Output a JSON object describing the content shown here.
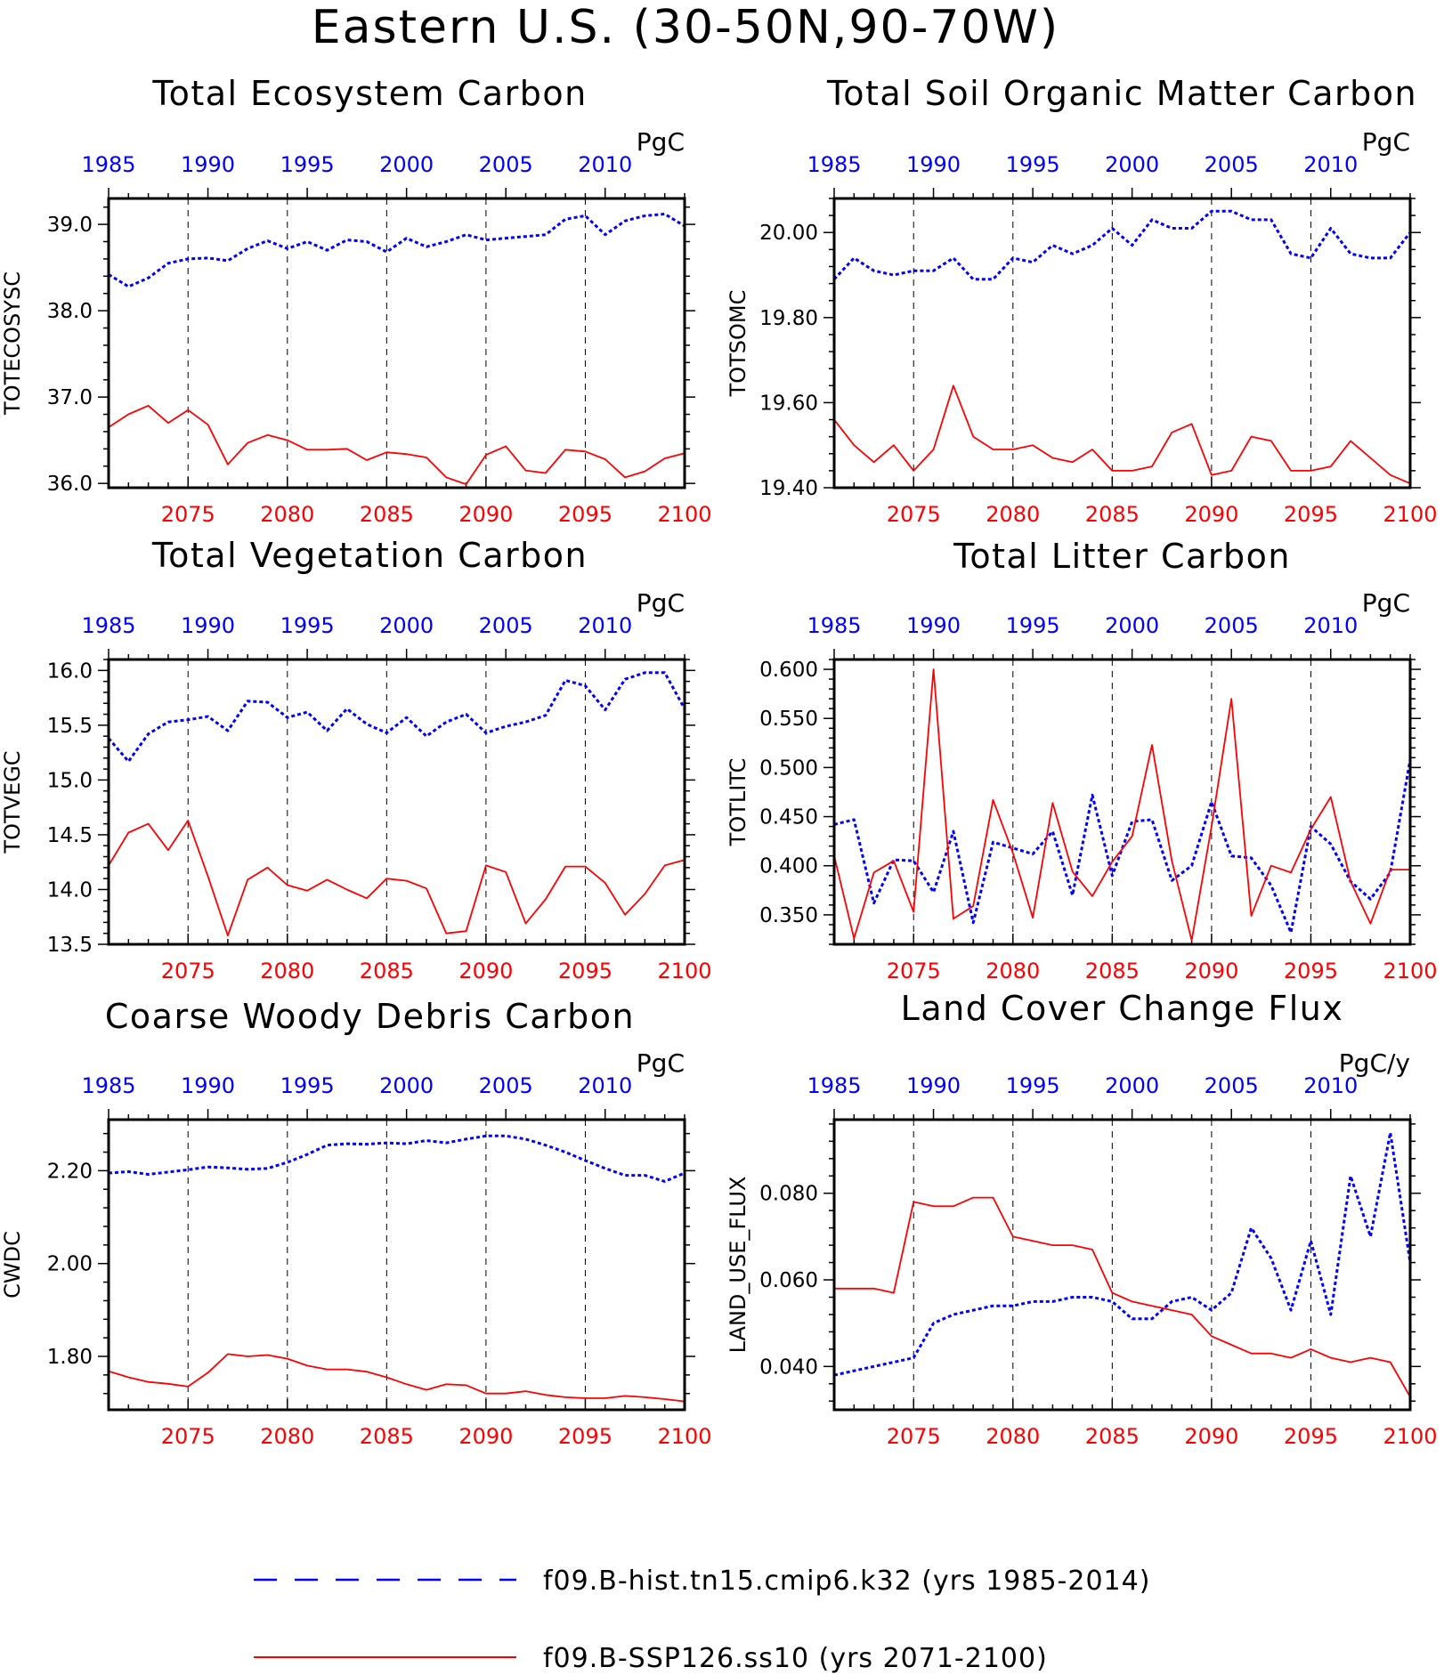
{
  "figure_title": "Eastern U.S. (30-50N,90-70W)",
  "colors": {
    "hist": "#0000ff",
    "ssp": "#ff0000",
    "axis": "#000000"
  },
  "legend": [
    {
      "label": "f09.B-hist.tn15.cmip6.k32 (yrs 1985-2014)",
      "color": "#0000ff",
      "style": "dashed"
    },
    {
      "label": "f09.B-SSP126.ss10 (yrs 2071-2100)",
      "color": "#ff0000",
      "style": "solid"
    }
  ],
  "chart_data": [
    {
      "type": "line",
      "title": "Total Ecosystem Carbon",
      "ylabel": "TOTECOSYSC",
      "unit": "PgC",
      "ylim": [
        35.95,
        39.3
      ],
      "yticks": [
        36.0,
        37.0,
        38.0,
        39.0
      ],
      "ytick_labels": [
        "36.0",
        "37.0",
        "38.0",
        "39.0"
      ],
      "x_bottom": {
        "range": [
          2071,
          2100
        ],
        "ticks": [
          2075,
          2080,
          2085,
          2090,
          2095,
          2100
        ]
      },
      "x_top": {
        "range": [
          1985,
          2014
        ],
        "ticks": [
          1985,
          1990,
          1995,
          2000,
          2005,
          2010
        ]
      },
      "series": [
        {
          "name": "f09.B-hist.tn15.cmip6.k32",
          "axis": "top",
          "x_start": 1985,
          "values": [
            38.42,
            38.28,
            38.38,
            38.55,
            38.6,
            38.61,
            38.58,
            38.72,
            38.81,
            38.72,
            38.8,
            38.7,
            38.82,
            38.8,
            38.68,
            38.84,
            38.74,
            38.8,
            38.88,
            38.82,
            38.84,
            38.86,
            38.88,
            39.06,
            39.1,
            38.88,
            39.04,
            39.1,
            39.12,
            38.98
          ]
        },
        {
          "name": "f09.B-SSP126.ss10",
          "axis": "bottom",
          "x_start": 2071,
          "values": [
            36.65,
            36.8,
            36.9,
            36.7,
            36.85,
            36.68,
            36.22,
            36.47,
            36.56,
            36.5,
            36.39,
            36.39,
            36.4,
            36.27,
            36.36,
            36.34,
            36.3,
            36.07,
            35.99,
            36.33,
            36.43,
            36.15,
            36.12,
            36.39,
            36.37,
            36.28,
            36.07,
            36.14,
            36.29,
            36.35
          ]
        }
      ]
    },
    {
      "type": "line",
      "title": "Total Soil Organic Matter Carbon",
      "ylabel": "TOTSOMC",
      "unit": "PgC",
      "ylim": [
        19.4,
        20.08
      ],
      "yticks": [
        19.4,
        19.6,
        19.8,
        20.0
      ],
      "ytick_labels": [
        "19.40",
        "19.60",
        "19.80",
        "20.00"
      ],
      "x_bottom": {
        "range": [
          2071,
          2100
        ],
        "ticks": [
          2075,
          2080,
          2085,
          2090,
          2095,
          2100
        ]
      },
      "x_top": {
        "range": [
          1985,
          2014
        ],
        "ticks": [
          1985,
          1990,
          1995,
          2000,
          2005,
          2010
        ]
      },
      "series": [
        {
          "name": "f09.B-hist.tn15.cmip6.k32",
          "axis": "top",
          "x_start": 1985,
          "values": [
            19.89,
            19.94,
            19.91,
            19.9,
            19.91,
            19.91,
            19.94,
            19.89,
            19.89,
            19.94,
            19.93,
            19.97,
            19.95,
            19.97,
            20.01,
            19.97,
            20.03,
            20.01,
            20.01,
            20.05,
            20.05,
            20.03,
            20.03,
            19.95,
            19.94,
            20.01,
            19.95,
            19.94,
            19.94,
            20.0
          ]
        },
        {
          "name": "f09.B-SSP126.ss10",
          "axis": "bottom",
          "x_start": 2071,
          "values": [
            19.56,
            19.5,
            19.46,
            19.5,
            19.44,
            19.49,
            19.64,
            19.52,
            19.49,
            19.49,
            19.5,
            19.47,
            19.46,
            19.49,
            19.44,
            19.44,
            19.45,
            19.53,
            19.55,
            19.43,
            19.44,
            19.52,
            19.51,
            19.44,
            19.44,
            19.45,
            19.51,
            19.47,
            19.43,
            19.41
          ]
        }
      ]
    },
    {
      "type": "line",
      "title": "Total Vegetation Carbon",
      "ylabel": "TOTVEGC",
      "unit": "PgC",
      "ylim": [
        13.5,
        16.1
      ],
      "yticks": [
        13.5,
        14.0,
        14.5,
        15.0,
        15.5,
        16.0
      ],
      "ytick_labels": [
        "13.5",
        "14.0",
        "14.5",
        "15.0",
        "15.5",
        "16.0"
      ],
      "x_bottom": {
        "range": [
          2071,
          2100
        ],
        "ticks": [
          2075,
          2080,
          2085,
          2090,
          2095,
          2100
        ]
      },
      "x_top": {
        "range": [
          1985,
          2014
        ],
        "ticks": [
          1985,
          1990,
          1995,
          2000,
          2005,
          2010
        ]
      },
      "series": [
        {
          "name": "f09.B-hist.tn15.cmip6.k32",
          "axis": "top",
          "x_start": 1985,
          "values": [
            15.38,
            15.17,
            15.42,
            15.53,
            15.55,
            15.58,
            15.45,
            15.72,
            15.71,
            15.57,
            15.62,
            15.45,
            15.65,
            15.51,
            15.43,
            15.57,
            15.4,
            15.53,
            15.6,
            15.43,
            15.49,
            15.53,
            15.59,
            15.91,
            15.86,
            15.64,
            15.92,
            15.98,
            15.98,
            15.65
          ]
        },
        {
          "name": "f09.B-SSP126.ss10",
          "axis": "bottom",
          "x_start": 2071,
          "values": [
            14.22,
            14.52,
            14.6,
            14.36,
            14.63,
            14.12,
            13.58,
            14.09,
            14.2,
            14.04,
            13.99,
            14.09,
            14.0,
            13.92,
            14.1,
            14.08,
            14.01,
            13.6,
            13.62,
            14.22,
            14.16,
            13.69,
            13.91,
            14.21,
            14.21,
            14.06,
            13.77,
            13.96,
            14.22,
            14.27
          ]
        }
      ]
    },
    {
      "type": "line",
      "title": "Total Litter Carbon",
      "ylabel": "TOTLITC",
      "unit": "PgC",
      "ylim": [
        0.32,
        0.61
      ],
      "yticks": [
        0.35,
        0.4,
        0.45,
        0.5,
        0.55,
        0.6
      ],
      "ytick_labels": [
        "0.350",
        "0.400",
        "0.450",
        "0.500",
        "0.550",
        "0.600"
      ],
      "x_bottom": {
        "range": [
          2071,
          2100
        ],
        "ticks": [
          2075,
          2080,
          2085,
          2090,
          2095,
          2100
        ]
      },
      "x_top": {
        "range": [
          1985,
          2014
        ],
        "ticks": [
          1985,
          1990,
          1995,
          2000,
          2005,
          2010
        ]
      },
      "series": [
        {
          "name": "f09.B-hist.tn15.cmip6.k32",
          "axis": "top",
          "x_start": 1985,
          "values": [
            0.442,
            0.447,
            0.362,
            0.406,
            0.405,
            0.373,
            0.435,
            0.342,
            0.424,
            0.418,
            0.412,
            0.435,
            0.37,
            0.472,
            0.39,
            0.445,
            0.447,
            0.385,
            0.4,
            0.465,
            0.41,
            0.408,
            0.38,
            0.332,
            0.44,
            0.422,
            0.384,
            0.366,
            0.393,
            0.508
          ]
        },
        {
          "name": "f09.B-SSP126.ss10",
          "axis": "bottom",
          "x_start": 2071,
          "values": [
            0.41,
            0.326,
            0.393,
            0.405,
            0.353,
            0.6,
            0.346,
            0.359,
            0.467,
            0.413,
            0.347,
            0.464,
            0.394,
            0.369,
            0.404,
            0.43,
            0.523,
            0.405,
            0.324,
            0.44,
            0.57,
            0.349,
            0.4,
            0.393,
            0.437,
            0.47,
            0.384,
            0.341,
            0.396,
            0.396
          ]
        }
      ]
    },
    {
      "type": "line",
      "title": "Coarse Woody Debris Carbon",
      "ylabel": "CWDC",
      "unit": "PgC",
      "ylim": [
        1.685,
        2.31
      ],
      "yticks": [
        1.8,
        2.0,
        2.2
      ],
      "ytick_labels": [
        "1.80",
        "2.00",
        "2.20"
      ],
      "x_bottom": {
        "range": [
          2071,
          2100
        ],
        "ticks": [
          2075,
          2080,
          2085,
          2090,
          2095,
          2100
        ]
      },
      "x_top": {
        "range": [
          1985,
          2014
        ],
        "ticks": [
          1985,
          1990,
          1995,
          2000,
          2005,
          2010
        ]
      },
      "series": [
        {
          "name": "f09.B-hist.tn15.cmip6.k32",
          "axis": "top",
          "x_start": 1985,
          "values": [
            2.195,
            2.198,
            2.192,
            2.197,
            2.202,
            2.208,
            2.206,
            2.203,
            2.205,
            2.218,
            2.235,
            2.255,
            2.258,
            2.257,
            2.26,
            2.258,
            2.265,
            2.26,
            2.268,
            2.275,
            2.275,
            2.268,
            2.255,
            2.24,
            2.222,
            2.205,
            2.19,
            2.19,
            2.177,
            2.195
          ]
        },
        {
          "name": "f09.B-SSP126.ss10",
          "axis": "bottom",
          "x_start": 2071,
          "values": [
            1.768,
            1.755,
            1.745,
            1.741,
            1.735,
            1.765,
            1.805,
            1.8,
            1.803,
            1.795,
            1.78,
            1.772,
            1.772,
            1.767,
            1.755,
            1.74,
            1.728,
            1.74,
            1.738,
            1.72,
            1.72,
            1.725,
            1.717,
            1.712,
            1.71,
            1.71,
            1.715,
            1.712,
            1.708,
            1.703
          ]
        }
      ]
    },
    {
      "type": "line",
      "title": "Land Cover Change Flux",
      "ylabel": "LAND_USE_FLUX",
      "unit": "PgC/y",
      "ylim": [
        0.03,
        0.097
      ],
      "yticks": [
        0.04,
        0.06,
        0.08
      ],
      "ytick_labels": [
        "0.040",
        "0.060",
        "0.080"
      ],
      "x_bottom": {
        "range": [
          2071,
          2100
        ],
        "ticks": [
          2075,
          2080,
          2085,
          2090,
          2095,
          2100
        ]
      },
      "x_top": {
        "range": [
          1985,
          2014
        ],
        "ticks": [
          1985,
          1990,
          1995,
          2000,
          2005,
          2010
        ]
      },
      "series": [
        {
          "name": "f09.B-hist.tn15.cmip6.k32",
          "axis": "top",
          "x_start": 1985,
          "values": [
            0.038,
            0.039,
            0.04,
            0.041,
            0.042,
            0.05,
            0.052,
            0.053,
            0.054,
            0.054,
            0.055,
            0.055,
            0.056,
            0.056,
            0.055,
            0.051,
            0.051,
            0.055,
            0.056,
            0.053,
            0.057,
            0.072,
            0.065,
            0.053,
            0.069,
            0.052,
            0.084,
            0.07,
            0.094,
            0.064
          ]
        },
        {
          "name": "f09.B-SSP126.ss10",
          "axis": "bottom",
          "x_start": 2071,
          "values": [
            0.058,
            0.058,
            0.058,
            0.057,
            0.078,
            0.077,
            0.077,
            0.079,
            0.079,
            0.07,
            0.069,
            0.068,
            0.068,
            0.067,
            0.057,
            0.055,
            0.054,
            0.053,
            0.052,
            0.047,
            0.045,
            0.043,
            0.043,
            0.042,
            0.044,
            0.042,
            0.041,
            0.042,
            0.041,
            0.033
          ]
        }
      ]
    }
  ]
}
